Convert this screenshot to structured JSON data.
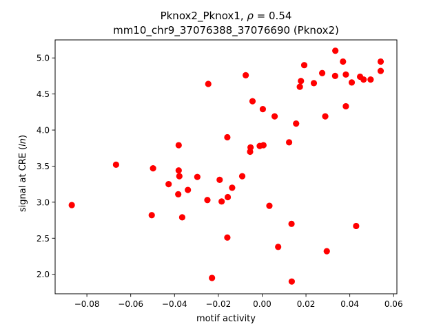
{
  "chart_data": {
    "type": "scatter",
    "title_line1": "Pknox2_Pknox1, ",
    "title_rho_symbol": "ρ",
    "title_rho_value": " = 0.54",
    "title_line2": "mm10_chr9_37076388_37076690 (Pknox2)",
    "xlabel": "motif activity",
    "ylabel_prefix": "signal at CRE (",
    "ylabel_italic": "ln",
    "ylabel_suffix": ")",
    "xlim": [
      -0.0945,
      0.0615
    ],
    "ylim": [
      1.73,
      5.25
    ],
    "xticks": [
      -0.08,
      -0.06,
      -0.04,
      -0.02,
      0.0,
      0.02,
      0.04,
      0.06
    ],
    "xtick_labels": [
      "−0.08",
      "−0.06",
      "−0.04",
      "−0.02",
      "0.00",
      "0.02",
      "0.04",
      "0.06"
    ],
    "yticks": [
      2.0,
      2.5,
      3.0,
      3.5,
      4.0,
      4.5,
      5.0
    ],
    "ytick_labels": [
      "2.0",
      "2.5",
      "3.0",
      "3.5",
      "4.0",
      "4.5",
      "5.0"
    ],
    "grid": false,
    "marker_color": "#ff0000",
    "points": [
      {
        "x": -0.0869,
        "y": 2.96
      },
      {
        "x": -0.0667,
        "y": 3.52
      },
      {
        "x": -0.0504,
        "y": 2.82
      },
      {
        "x": -0.0498,
        "y": 3.47
      },
      {
        "x": -0.0427,
        "y": 3.25
      },
      {
        "x": -0.0383,
        "y": 3.11
      },
      {
        "x": -0.0381,
        "y": 3.44
      },
      {
        "x": -0.0381,
        "y": 3.79
      },
      {
        "x": -0.0378,
        "y": 3.36
      },
      {
        "x": -0.0365,
        "y": 2.79
      },
      {
        "x": -0.0339,
        "y": 3.17
      },
      {
        "x": -0.0296,
        "y": 3.35
      },
      {
        "x": -0.025,
        "y": 3.03
      },
      {
        "x": -0.0246,
        "y": 4.64
      },
      {
        "x": -0.0229,
        "y": 1.95
      },
      {
        "x": -0.0194,
        "y": 3.31
      },
      {
        "x": -0.0185,
        "y": 3.01
      },
      {
        "x": -0.0159,
        "y": 3.9
      },
      {
        "x": -0.0159,
        "y": 2.51
      },
      {
        "x": -0.0157,
        "y": 3.07
      },
      {
        "x": -0.0137,
        "y": 3.2
      },
      {
        "x": -0.0091,
        "y": 3.36
      },
      {
        "x": -0.0075,
        "y": 4.76
      },
      {
        "x": -0.0055,
        "y": 3.7
      },
      {
        "x": -0.0053,
        "y": 3.76
      },
      {
        "x": -0.0044,
        "y": 4.4
      },
      {
        "x": -0.0011,
        "y": 3.78
      },
      {
        "x": 0.0003,
        "y": 4.29
      },
      {
        "x": 0.0006,
        "y": 3.79
      },
      {
        "x": 0.0033,
        "y": 2.95
      },
      {
        "x": 0.0057,
        "y": 4.19
      },
      {
        "x": 0.0073,
        "y": 2.38
      },
      {
        "x": 0.0123,
        "y": 3.83
      },
      {
        "x": 0.0134,
        "y": 2.7
      },
      {
        "x": 0.0135,
        "y": 1.9
      },
      {
        "x": 0.0155,
        "y": 4.09
      },
      {
        "x": 0.0172,
        "y": 4.6
      },
      {
        "x": 0.0177,
        "y": 4.68
      },
      {
        "x": 0.0192,
        "y": 4.9
      },
      {
        "x": 0.0236,
        "y": 4.65
      },
      {
        "x": 0.0274,
        "y": 4.79
      },
      {
        "x": 0.0288,
        "y": 4.19
      },
      {
        "x": 0.0295,
        "y": 2.32
      },
      {
        "x": 0.0334,
        "y": 5.1
      },
      {
        "x": 0.0333,
        "y": 4.75
      },
      {
        "x": 0.0369,
        "y": 4.95
      },
      {
        "x": 0.0382,
        "y": 4.77
      },
      {
        "x": 0.0382,
        "y": 4.33
      },
      {
        "x": 0.0409,
        "y": 4.66
      },
      {
        "x": 0.0429,
        "y": 2.67
      },
      {
        "x": 0.0447,
        "y": 4.74
      },
      {
        "x": 0.0463,
        "y": 4.7
      },
      {
        "x": 0.0495,
        "y": 4.7
      },
      {
        "x": 0.0541,
        "y": 4.95
      },
      {
        "x": 0.0541,
        "y": 4.82
      }
    ]
  }
}
